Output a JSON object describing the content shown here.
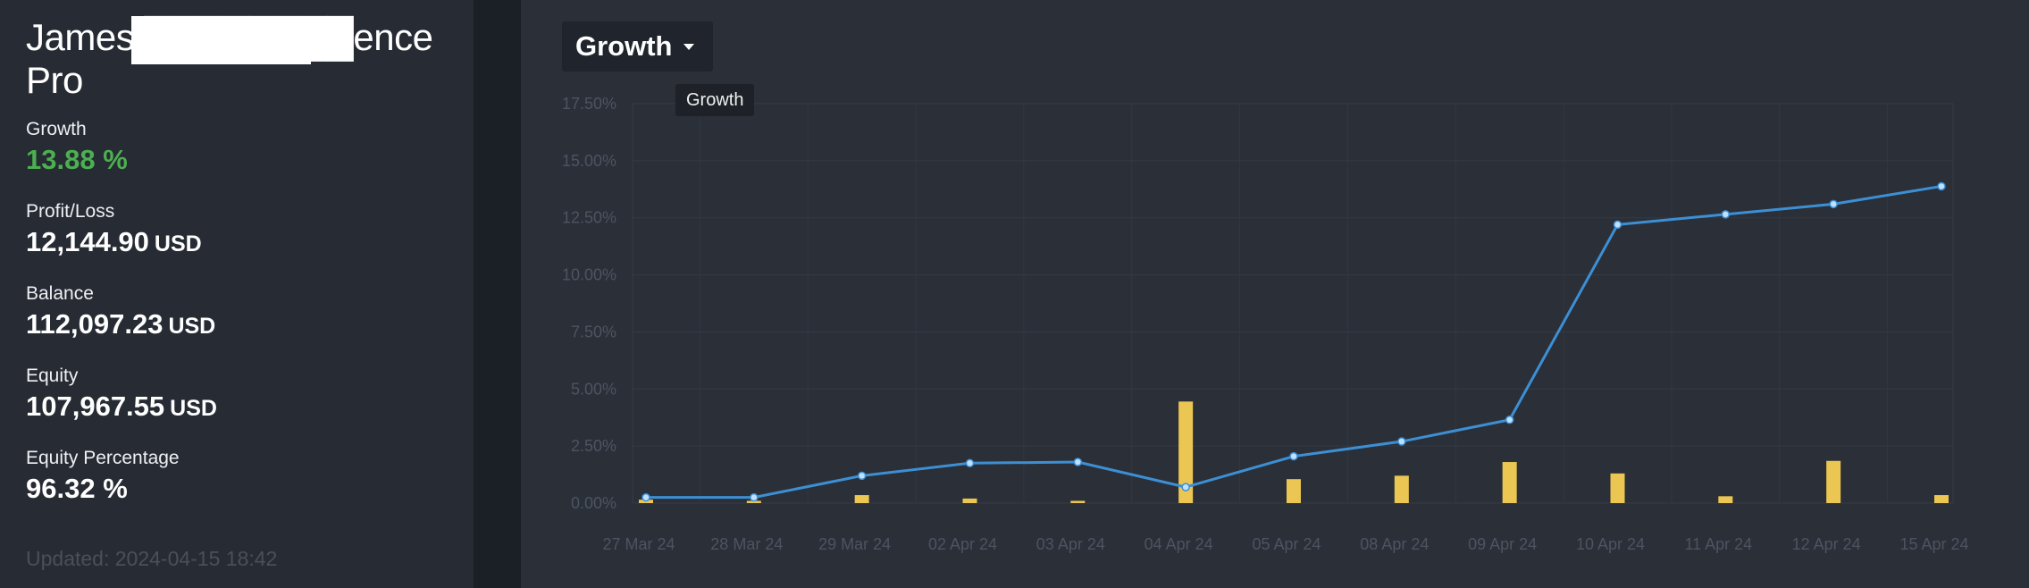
{
  "account": {
    "title": "James ████████ence Pro"
  },
  "stats": [
    {
      "label": "Growth",
      "value": "13.88 %",
      "unit": ""
    },
    {
      "label": "Profit/Loss",
      "value": "12,144.90",
      "unit": "USD"
    },
    {
      "label": "Balance",
      "value": "112,097.23",
      "unit": "USD"
    },
    {
      "label": "Equity",
      "value": "107,967.55",
      "unit": "USD"
    },
    {
      "label": "Equity Percentage",
      "value": "96.32 %",
      "unit": ""
    }
  ],
  "updated": "Updated: 2024-04-15 18:42",
  "chart_selector": {
    "label": "Growth",
    "tooltip": "Growth"
  },
  "colors": {
    "line": "#3d8fd4",
    "bar": "#ecc653",
    "positive": "#4caf50"
  },
  "chart_data": {
    "type": "line",
    "categories": [
      "27 Mar 24",
      "28 Mar 24",
      "29 Mar 24",
      "02 Apr 24",
      "03 Apr 24",
      "04 Apr 24",
      "05 Apr 24",
      "08 Apr 24",
      "09 Apr 24",
      "10 Apr 24",
      "11 Apr 24",
      "12 Apr 24",
      "15 Apr 24"
    ],
    "series": [
      {
        "values": [
          0.25,
          0.25,
          1.2,
          1.75,
          1.8,
          0.7,
          2.05,
          2.7,
          3.65,
          12.2,
          12.65,
          13.1,
          13.88
        ]
      },
      {
        "type": "bar",
        "values": [
          0.15,
          0.1,
          0.35,
          0.2,
          0.1,
          4.45,
          1.05,
          1.2,
          1.8,
          1.3,
          0.3,
          1.85,
          0.35
        ]
      }
    ],
    "yticks": [
      "0.00%",
      "2.50%",
      "5.00%",
      "7.50%",
      "10.00%",
      "12.50%",
      "15.00%",
      "17.50%"
    ],
    "ylim": [
      0,
      17.5
    ],
    "grid": true
  }
}
